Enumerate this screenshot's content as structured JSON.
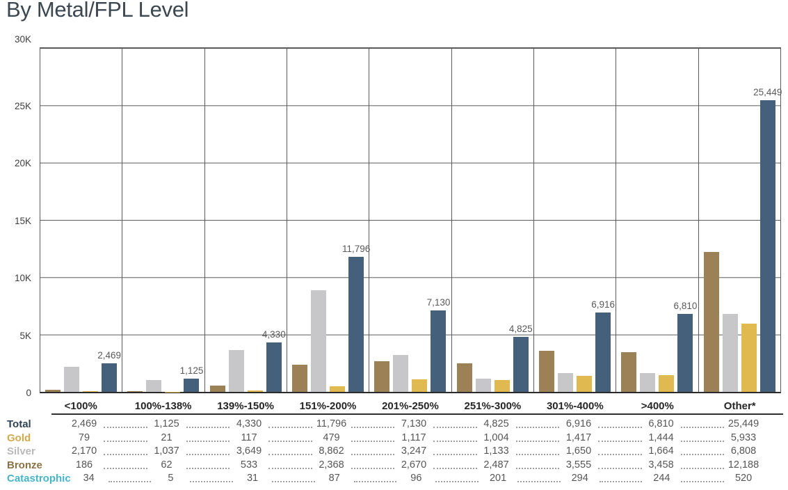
{
  "page": {
    "title": "By Metal/FPL Level"
  },
  "chart_data": {
    "type": "bar",
    "title": "By Metal/FPL Level",
    "categories": [
      "<100%",
      "100%-138%",
      "139%-150%",
      "151%-200%",
      "201%-250%",
      "251%-300%",
      "301%-400%",
      ">400%",
      "Other*"
    ],
    "series": [
      {
        "name": "Bronze",
        "color": "#9c8157",
        "values": [
          186,
          62,
          533,
          2368,
          2670,
          2487,
          3555,
          3458,
          12188
        ]
      },
      {
        "name": "Silver",
        "color": "#c7c7c9",
        "values": [
          2170,
          1037,
          3649,
          8862,
          3247,
          1133,
          1650,
          1664,
          6808
        ]
      },
      {
        "name": "Gold",
        "color": "#e0ba50",
        "values": [
          79,
          21,
          117,
          479,
          1117,
          1004,
          1417,
          1444,
          5933
        ]
      },
      {
        "name": "Total",
        "color": "#44607b",
        "values": [
          2469,
          1125,
          4330,
          11796,
          7130,
          4825,
          6916,
          6810,
          25449
        ],
        "show_data_labels": true
      }
    ],
    "data_labels": [
      "2,469",
      "1,125",
      "4,330",
      "11,796",
      "7,130",
      "4,825",
      "6,916",
      "6,810",
      "25,449"
    ],
    "ylim": [
      0,
      30000
    ],
    "y_ticks": [
      {
        "value": 0,
        "label": "0"
      },
      {
        "value": 5000,
        "label": "5K"
      },
      {
        "value": 10000,
        "label": "10K"
      },
      {
        "value": 15000,
        "label": "15K"
      },
      {
        "value": 20000,
        "label": "20K"
      },
      {
        "value": 25000,
        "label": "25K"
      },
      {
        "value": 30000,
        "label": "30K"
      }
    ],
    "grid": true,
    "legend_position": "table-below"
  },
  "table": {
    "rows": [
      {
        "label": "Total",
        "label_color": "#2e4257",
        "values": [
          "2,469",
          "1,125",
          "4,330",
          "11,796",
          "7,130",
          "4,825",
          "6,916",
          "6,810",
          "25,449"
        ]
      },
      {
        "label": "Gold",
        "label_color": "#d2aa4b",
        "values": [
          "79",
          "21",
          "117",
          "479",
          "1,117",
          "1,004",
          "1,417",
          "1,444",
          "5,933"
        ]
      },
      {
        "label": "Silver",
        "label_color": "#b9b9bb",
        "values": [
          "2,170",
          "1,037",
          "3,649",
          "8,862",
          "3,247",
          "1,133",
          "1,650",
          "1,664",
          "6,808"
        ]
      },
      {
        "label": "Bronze",
        "label_color": "#8b7245",
        "values": [
          "186",
          "62",
          "533",
          "2,368",
          "2,670",
          "2,487",
          "3,555",
          "3,458",
          "12,188"
        ]
      },
      {
        "label": "Catastrophic",
        "label_color": "#46b5c9",
        "values": [
          "34",
          "5",
          "31",
          "87",
          "96",
          "201",
          "294",
          "244",
          "520"
        ]
      }
    ]
  },
  "colors": {
    "grid": "#595959",
    "axis_line": "#2b2b2b",
    "bar_label": "#595959",
    "tick_label": "#3d3d3d",
    "category_label": "#262626",
    "value_text": "#565656",
    "title": "#3b4751"
  }
}
